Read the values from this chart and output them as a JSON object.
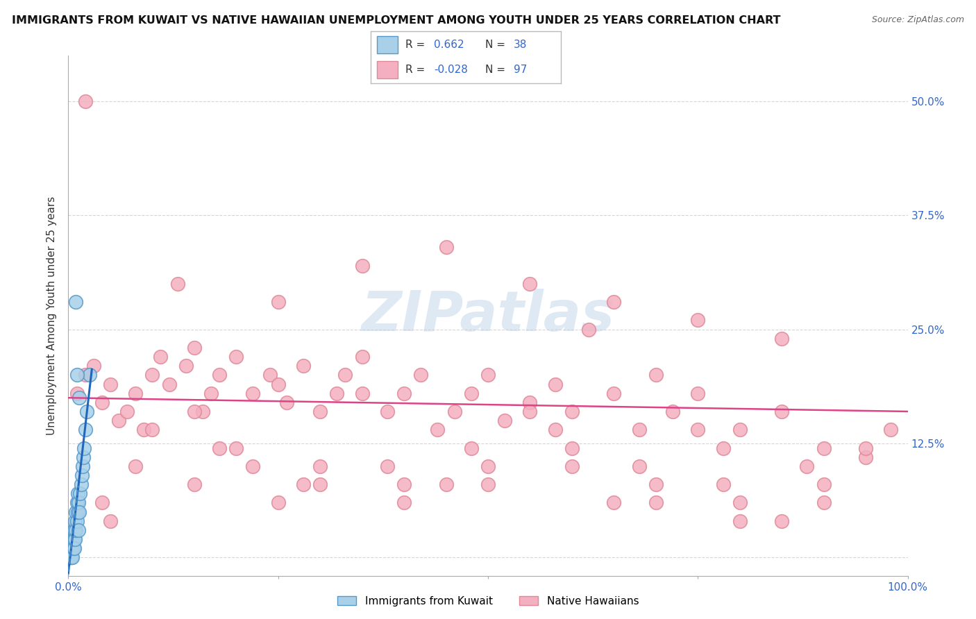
{
  "title": "IMMIGRANTS FROM KUWAIT VS NATIVE HAWAIIAN UNEMPLOYMENT AMONG YOUTH UNDER 25 YEARS CORRELATION CHART",
  "source": "Source: ZipAtlas.com",
  "ylabel": "Unemployment Among Youth under 25 years",
  "xlim": [
    0,
    1.0
  ],
  "ylim": [
    -0.02,
    0.55
  ],
  "ytick_vals": [
    0.0,
    0.125,
    0.25,
    0.375,
    0.5
  ],
  "ytick_labels": [
    "",
    "12.5%",
    "25.0%",
    "37.5%",
    "50.0%"
  ],
  "xtick_vals": [
    0.0,
    0.25,
    0.5,
    0.75,
    1.0
  ],
  "xtick_labels": [
    "0.0%",
    "",
    "",
    "",
    "100.0%"
  ],
  "color_blue": "#a8d0e8",
  "color_pink": "#f4afc0",
  "edge_blue": "#5599cc",
  "edge_pink": "#e08898",
  "line_blue": "#2266bb",
  "line_pink": "#dd4488",
  "watermark": "ZIPatlas",
  "background_color": "#ffffff",
  "grid_color": "#cccccc",
  "legend_box_color": "#ffffff",
  "legend_edge_color": "#aaaaaa",
  "blue_label": "Immigrants from Kuwait",
  "pink_label": "Native Hawaiians",
  "R_blue": "0.662",
  "N_blue": "38",
  "R_pink": "-0.028",
  "N_pink": "97",
  "blue_x": [
    0.002,
    0.003,
    0.003,
    0.004,
    0.004,
    0.004,
    0.005,
    0.005,
    0.005,
    0.006,
    0.006,
    0.006,
    0.007,
    0.007,
    0.007,
    0.008,
    0.008,
    0.009,
    0.009,
    0.01,
    0.01,
    0.011,
    0.011,
    0.012,
    0.012,
    0.013,
    0.014,
    0.015,
    0.016,
    0.017,
    0.018,
    0.019,
    0.02,
    0.022,
    0.025,
    0.009,
    0.01,
    0.013
  ],
  "blue_y": [
    0.0,
    0.01,
    0.0,
    0.01,
    0.0,
    0.02,
    0.01,
    0.02,
    0.0,
    0.02,
    0.01,
    0.03,
    0.02,
    0.03,
    0.01,
    0.04,
    0.02,
    0.03,
    0.05,
    0.04,
    0.06,
    0.05,
    0.07,
    0.06,
    0.03,
    0.05,
    0.07,
    0.08,
    0.09,
    0.1,
    0.11,
    0.12,
    0.14,
    0.16,
    0.2,
    0.28,
    0.2,
    0.175
  ],
  "pink_x": [
    0.01,
    0.02,
    0.03,
    0.04,
    0.05,
    0.06,
    0.07,
    0.08,
    0.09,
    0.1,
    0.11,
    0.12,
    0.14,
    0.15,
    0.16,
    0.17,
    0.18,
    0.2,
    0.22,
    0.24,
    0.25,
    0.26,
    0.28,
    0.3,
    0.32,
    0.33,
    0.35,
    0.38,
    0.4,
    0.42,
    0.44,
    0.46,
    0.48,
    0.5,
    0.52,
    0.55,
    0.58,
    0.6,
    0.62,
    0.65,
    0.68,
    0.7,
    0.72,
    0.75,
    0.78,
    0.8,
    0.85,
    0.9,
    0.95,
    0.98,
    0.13,
    0.25,
    0.35,
    0.45,
    0.55,
    0.65,
    0.75,
    0.85,
    0.08,
    0.18,
    0.28,
    0.38,
    0.48,
    0.58,
    0.68,
    0.78,
    0.88,
    0.04,
    0.15,
    0.22,
    0.3,
    0.4,
    0.5,
    0.6,
    0.7,
    0.8,
    0.9,
    0.1,
    0.2,
    0.3,
    0.4,
    0.5,
    0.6,
    0.7,
    0.8,
    0.9,
    0.05,
    0.25,
    0.45,
    0.65,
    0.85,
    0.15,
    0.35,
    0.55,
    0.75,
    0.95,
    0.02
  ],
  "pink_y": [
    0.18,
    0.2,
    0.21,
    0.17,
    0.19,
    0.15,
    0.16,
    0.18,
    0.14,
    0.2,
    0.22,
    0.19,
    0.21,
    0.23,
    0.16,
    0.18,
    0.2,
    0.22,
    0.18,
    0.2,
    0.19,
    0.17,
    0.21,
    0.16,
    0.18,
    0.2,
    0.22,
    0.16,
    0.18,
    0.2,
    0.14,
    0.16,
    0.18,
    0.2,
    0.15,
    0.17,
    0.19,
    0.16,
    0.25,
    0.18,
    0.14,
    0.2,
    0.16,
    0.18,
    0.12,
    0.14,
    0.16,
    0.12,
    0.11,
    0.14,
    0.3,
    0.28,
    0.32,
    0.34,
    0.3,
    0.28,
    0.26,
    0.24,
    0.1,
    0.12,
    0.08,
    0.1,
    0.12,
    0.14,
    0.1,
    0.08,
    0.1,
    0.06,
    0.08,
    0.1,
    0.08,
    0.06,
    0.08,
    0.1,
    0.08,
    0.06,
    0.08,
    0.14,
    0.12,
    0.1,
    0.08,
    0.1,
    0.12,
    0.06,
    0.04,
    0.06,
    0.04,
    0.06,
    0.08,
    0.06,
    0.04,
    0.16,
    0.18,
    0.16,
    0.14,
    0.12,
    0.5
  ]
}
